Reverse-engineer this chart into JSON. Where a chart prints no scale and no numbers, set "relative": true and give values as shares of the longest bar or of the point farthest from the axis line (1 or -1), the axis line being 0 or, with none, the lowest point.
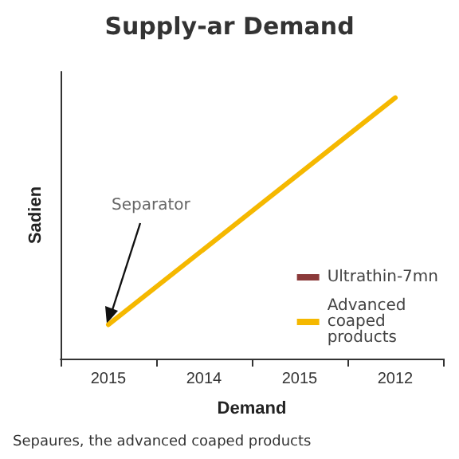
{
  "chart_data": {
    "type": "line",
    "title": "Supply-ar Demand",
    "xlabel": "Demand",
    "ylabel": "Sadien",
    "relative": true,
    "categories": [
      "2015",
      "2014",
      "2015",
      "2012"
    ],
    "series": [
      {
        "name": "Ultrathin-7mn",
        "color": "#8b3a3a",
        "values": [
          null,
          null,
          null,
          null
        ]
      },
      {
        "name": "Advanced coaped products",
        "color": "#f5b800",
        "values": [
          0.13,
          0.42,
          0.71,
          1
        ]
      }
    ],
    "annotations": [
      "Separator",
      "Sepaures, the advanced coaped products"
    ],
    "legend": "bottom right",
    "grid": false,
    "marker": "none",
    "line_style": "solid"
  }
}
